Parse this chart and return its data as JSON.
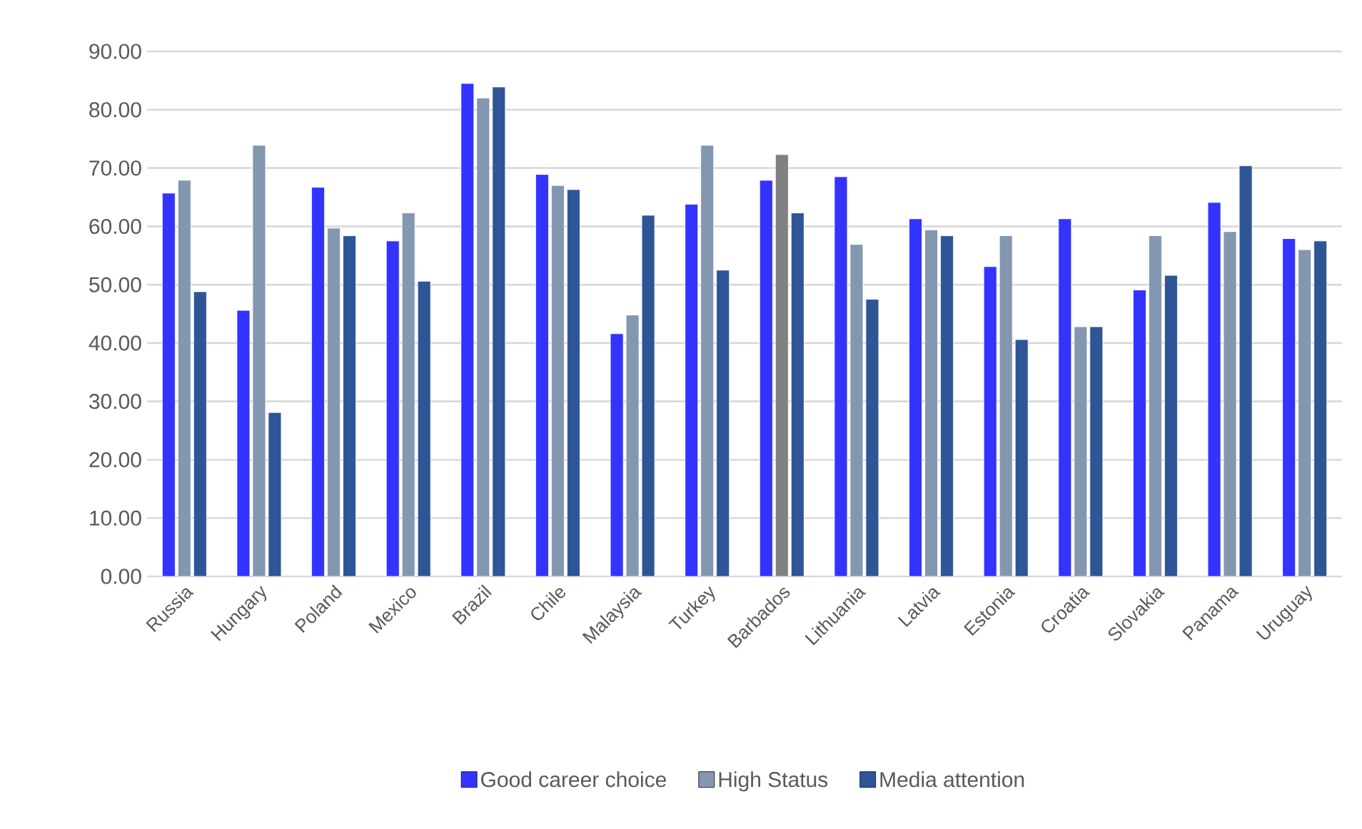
{
  "chart_data": {
    "type": "bar",
    "categories": [
      "Russia",
      "Hungary",
      "Poland",
      "Mexico",
      "Brazil",
      "Chile",
      "Malaysia",
      "Turkey",
      "Barbados",
      "Lithuania",
      "Latvia",
      "Estonia",
      "Croatia",
      "Slovakia",
      "Panama",
      "Uruguay"
    ],
    "series": [
      {
        "name": "Good career choice",
        "color": "#3333ff",
        "values": [
          65.7,
          45.6,
          66.7,
          57.5,
          84.5,
          68.9,
          41.6,
          63.8,
          67.9,
          68.5,
          61.3,
          53.1,
          61.3,
          49.1,
          64.1,
          57.9
        ]
      },
      {
        "name": "High Status",
        "color": "#8497b0",
        "colors": [
          "#8497b0",
          "#8497b0",
          "#8497b0",
          "#8497b0",
          "#8497b0",
          "#8497b0",
          "#8497b0",
          "#8497b0",
          "#808080",
          "#8497b0",
          "#8497b0",
          "#8497b0",
          "#8497b0",
          "#8497b0",
          "#8497b0",
          "#8497b0"
        ],
        "values": [
          67.9,
          73.9,
          59.7,
          62.3,
          82.0,
          67.0,
          44.8,
          73.9,
          72.3,
          56.9,
          59.4,
          58.4,
          42.8,
          58.4,
          59.1,
          56.0
        ]
      },
      {
        "name": "Media attention",
        "color": "#2f5597",
        "values": [
          48.8,
          28.1,
          58.4,
          50.6,
          83.9,
          66.3,
          61.9,
          52.5,
          62.3,
          47.5,
          58.4,
          40.6,
          42.8,
          51.6,
          70.4,
          57.5
        ]
      }
    ],
    "ylim": [
      0,
      90
    ],
    "yticks": [
      {
        "value": 0,
        "label": "0.00"
      },
      {
        "value": 10,
        "label": "10.00"
      },
      {
        "value": 20,
        "label": "20.00"
      },
      {
        "value": 30,
        "label": "30.00"
      },
      {
        "value": 40,
        "label": "40.00"
      },
      {
        "value": 50,
        "label": "50.00"
      },
      {
        "value": 60,
        "label": "60.00"
      },
      {
        "value": 70,
        "label": "70.00"
      },
      {
        "value": 80,
        "label": "80.00"
      },
      {
        "value": 90,
        "label": "90.00"
      }
    ],
    "grid": "y",
    "legend": "bottom"
  }
}
